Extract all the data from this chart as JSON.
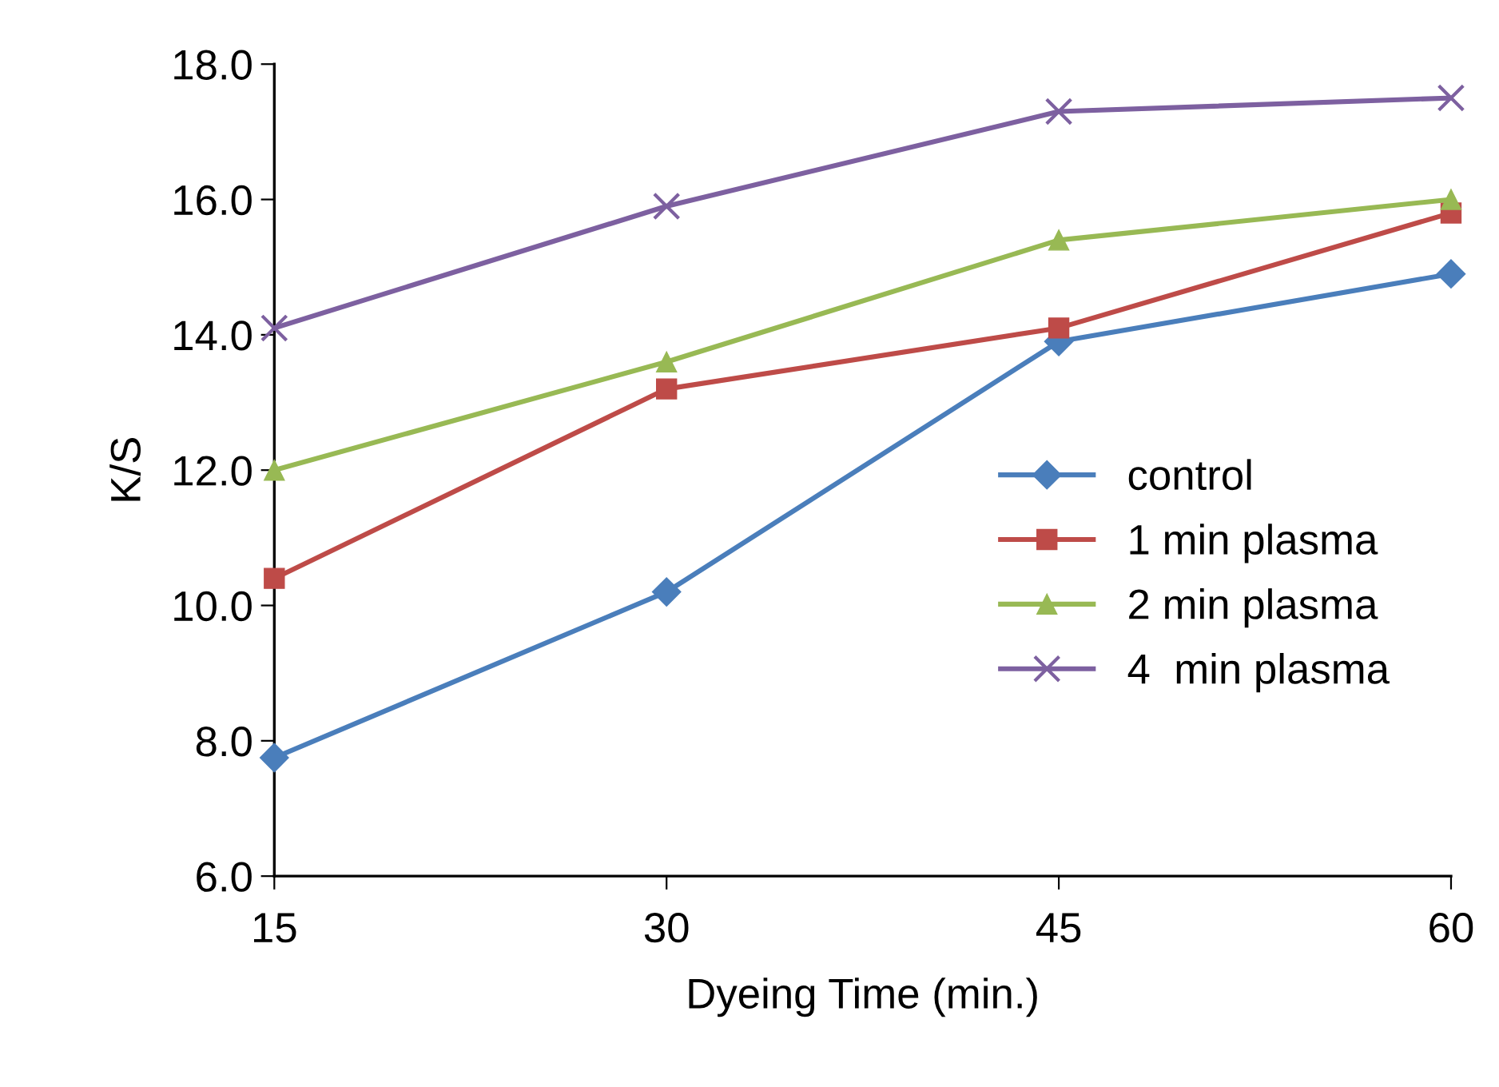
{
  "chart_data": {
    "type": "line",
    "xlabel": "Dyeing Time (min.)",
    "ylabel": "K/S",
    "x": [
      15,
      30,
      45,
      60
    ],
    "series": [
      {
        "name": "control",
        "color": "#4a7ebb",
        "marker": "diamond",
        "values": [
          7.75,
          10.2,
          13.9,
          14.9
        ]
      },
      {
        "name": "1 min plasma",
        "color": "#be4b48",
        "marker": "square",
        "values": [
          10.4,
          13.2,
          14.1,
          15.8
        ]
      },
      {
        "name": "2 min plasma",
        "color": "#98b954",
        "marker": "triangle",
        "values": [
          12.0,
          13.6,
          15.4,
          16.0
        ]
      },
      {
        "name": "4  min plasma",
        "color": "#7d60a0",
        "marker": "cross",
        "values": [
          14.1,
          15.9,
          17.3,
          17.5
        ]
      }
    ],
    "xlim": [
      15,
      60
    ],
    "xticks": [
      15,
      30,
      45,
      60
    ],
    "ylim": [
      6,
      18
    ],
    "yticks": [
      {
        "value": 6,
        "label": "6.0"
      },
      {
        "value": 8,
        "label": "8.0"
      },
      {
        "value": 10,
        "label": "10.0"
      },
      {
        "value": 12,
        "label": "12.0"
      },
      {
        "value": 14,
        "label": "14.0"
      },
      {
        "value": 16,
        "label": "16.0"
      },
      {
        "value": 18,
        "label": "18.0"
      }
    ],
    "grid": false,
    "legend": "center right",
    "line_style": "solid"
  }
}
